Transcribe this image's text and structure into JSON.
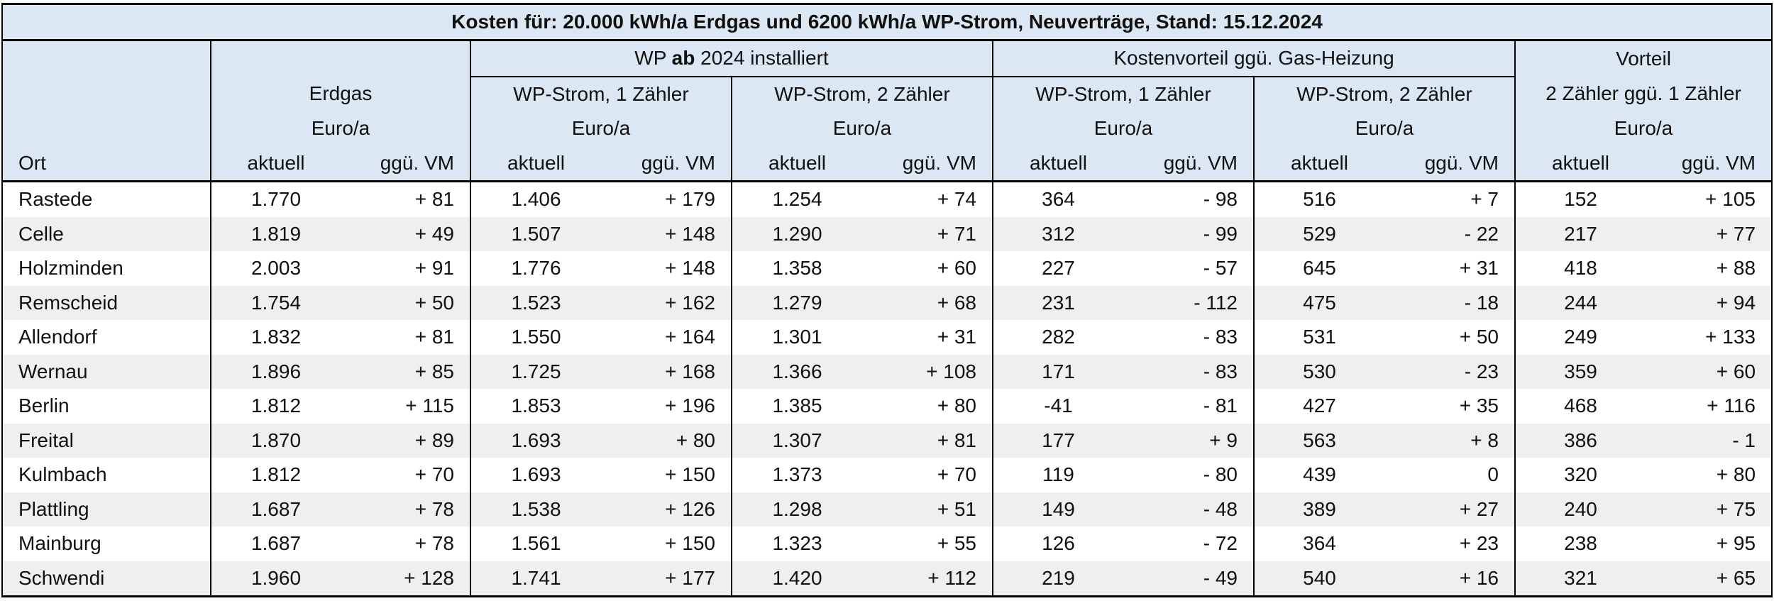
{
  "table": {
    "title_prefix": "Kosten für: 20.000 kWh/a Erdgas und 6200 kWh/a WP-Strom, Neuverträge, Stand: 15.12.2024",
    "header": {
      "group_wp_pre": "WP ",
      "group_wp_bold": "ab",
      "group_wp_post": " 2024 installiert",
      "group_vorteil_gas": "Kostenvorteil ggü. Gas-Heizung",
      "group_vorteil": "Vorteil",
      "erdgas": "Erdgas",
      "wp1": "WP-Strom, 1 Zähler",
      "wp2": "WP-Strom, 2 Zähler",
      "kv1": "WP-Strom, 1 Zähler",
      "kv2": "WP-Strom, 2 Zähler",
      "vorteil_sub": "2 Zähler ggü. 1 Zähler",
      "unit": "Euro/a",
      "ort": "Ort",
      "aktuell": "aktuell",
      "vm": "ggü. VM"
    },
    "rows": [
      {
        "ort": "Rastede",
        "v": [
          "1.770",
          "+ 81",
          "1.406",
          "+ 179",
          "1.254",
          "+ 74",
          "364",
          "- 98",
          "516",
          "+ 7",
          "152",
          "+ 105"
        ]
      },
      {
        "ort": "Celle",
        "v": [
          "1.819",
          "+ 49",
          "1.507",
          "+ 148",
          "1.290",
          "+ 71",
          "312",
          "- 99",
          "529",
          "- 22",
          "217",
          "+ 77"
        ]
      },
      {
        "ort": "Holzminden",
        "v": [
          "2.003",
          "+ 91",
          "1.776",
          "+ 148",
          "1.358",
          "+ 60",
          "227",
          "- 57",
          "645",
          "+ 31",
          "418",
          "+ 88"
        ]
      },
      {
        "ort": "Remscheid",
        "v": [
          "1.754",
          "+ 50",
          "1.523",
          "+ 162",
          "1.279",
          "+ 68",
          "231",
          "- 112",
          "475",
          "- 18",
          "244",
          "+ 94"
        ]
      },
      {
        "ort": "Allendorf",
        "v": [
          "1.832",
          "+ 81",
          "1.550",
          "+ 164",
          "1.301",
          "+ 31",
          "282",
          "- 83",
          "531",
          "+ 50",
          "249",
          "+ 133"
        ]
      },
      {
        "ort": "Wernau",
        "v": [
          "1.896",
          "+ 85",
          "1.725",
          "+ 168",
          "1.366",
          "+ 108",
          "171",
          "- 83",
          "530",
          "- 23",
          "359",
          "+ 60"
        ]
      },
      {
        "ort": "Berlin",
        "v": [
          "1.812",
          "+ 115",
          "1.853",
          "+ 196",
          "1.385",
          "+ 80",
          "-41",
          "- 81",
          "427",
          "+ 35",
          "468",
          "+ 116"
        ]
      },
      {
        "ort": "Freital",
        "v": [
          "1.870",
          "+ 89",
          "1.693",
          "+ 80",
          "1.307",
          "+ 81",
          "177",
          "+ 9",
          "563",
          "+ 8",
          "386",
          "- 1"
        ]
      },
      {
        "ort": "Kulmbach",
        "v": [
          "1.812",
          "+ 70",
          "1.693",
          "+ 150",
          "1.373",
          "+ 70",
          "119",
          "- 80",
          "439",
          "0",
          "320",
          "+ 80"
        ]
      },
      {
        "ort": "Plattling",
        "v": [
          "1.687",
          "+ 78",
          "1.538",
          "+ 126",
          "1.298",
          "+ 51",
          "149",
          "- 48",
          "389",
          "+ 27",
          "240",
          "+ 75"
        ]
      },
      {
        "ort": "Mainburg",
        "v": [
          "1.687",
          "+ 78",
          "1.561",
          "+ 150",
          "1.323",
          "+ 55",
          "126",
          "- 72",
          "364",
          "+ 23",
          "238",
          "+ 95"
        ]
      },
      {
        "ort": "Schwendi",
        "v": [
          "1.960",
          "+ 128",
          "1.741",
          "+ 177",
          "1.420",
          "+ 112",
          "219",
          "- 49",
          "540",
          "+ 16",
          "321",
          "+ 65"
        ]
      }
    ]
  }
}
